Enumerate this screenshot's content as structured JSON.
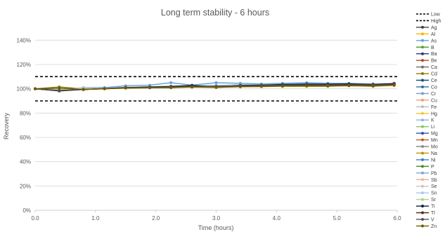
{
  "chart_data": {
    "type": "line",
    "title": "Long term stability - 6 hours",
    "xlabel": "Time (hours)",
    "ylabel": "Recovery",
    "xlim": [
      0,
      6
    ],
    "ylim": [
      0,
      150
    ],
    "x_ticks": [
      "0.0",
      "1.0",
      "2.0",
      "3.0",
      "4.0",
      "5.0",
      "6.0"
    ],
    "y_ticks": [
      "0%",
      "20%",
      "40%",
      "60%",
      "80%",
      "100%",
      "120%",
      "140%"
    ],
    "grid": "horizontal",
    "legend_position": "right",
    "x": [
      0,
      0.4,
      0.8,
      1.15,
      1.5,
      1.9,
      2.25,
      2.6,
      3.0,
      3.4,
      3.75,
      4.1,
      4.5,
      4.85,
      5.2,
      5.6,
      5.95
    ],
    "thresholds": [
      {
        "name": "Low",
        "value": 90,
        "color": "#000000"
      },
      {
        "name": "High",
        "value": 110,
        "color": "#000000"
      }
    ],
    "series": [
      {
        "name": "Ag",
        "color": "#404040",
        "values": [
          100,
          98.5,
          99.5,
          100,
          100.8,
          101,
          101.5,
          101.8,
          101.5,
          102,
          102.3,
          102.5,
          102.8,
          103,
          103,
          103,
          103.5
        ]
      },
      {
        "name": "Al",
        "color": "#f5b800",
        "values": [
          100,
          99,
          99.6,
          100.2,
          100.8,
          101.2,
          101.5,
          102,
          102,
          102.3,
          102.5,
          102.8,
          103,
          103,
          103.2,
          103,
          103.5
        ]
      },
      {
        "name": "As",
        "color": "#6a9fd8",
        "values": [
          100,
          99,
          101,
          101,
          102.5,
          103,
          105,
          103,
          105,
          104.5,
          104,
          104.5,
          105,
          104.5,
          104.5,
          104,
          104
        ]
      },
      {
        "name": "B",
        "color": "#5aa02c",
        "values": [
          100,
          98.8,
          99.5,
          100.2,
          100.8,
          101,
          101.2,
          101.8,
          101.8,
          102,
          102.2,
          102.5,
          102.8,
          102.8,
          103,
          102.8,
          103.2
        ]
      },
      {
        "name": "Ba",
        "color": "#1f3e7a",
        "values": [
          100,
          98.5,
          99.6,
          100.3,
          101,
          101.5,
          101.8,
          102.5,
          102.5,
          103,
          103.2,
          103.5,
          103.8,
          103.8,
          104,
          103.8,
          104.2
        ]
      },
      {
        "name": "Be",
        "color": "#b5481a",
        "values": [
          100,
          98.6,
          99.5,
          100.2,
          100.8,
          101.2,
          101.5,
          102,
          102,
          102.5,
          102.6,
          103,
          103.2,
          103.3,
          103.5,
          103.2,
          104
        ]
      },
      {
        "name": "Ca",
        "color": "#6e6e6e",
        "values": [
          100,
          98.7,
          99.6,
          100.3,
          100.9,
          101.2,
          101.6,
          102,
          102.2,
          102.5,
          102.7,
          103,
          103.2,
          103.2,
          103.5,
          103.3,
          103.8
        ]
      },
      {
        "name": "Cd",
        "color": "#8c7a00",
        "values": [
          100,
          101.5,
          100,
          100.5,
          101,
          101,
          100.8,
          101.5,
          101,
          101.8,
          101.8,
          102,
          102,
          102,
          102.5,
          102,
          103
        ]
      },
      {
        "name": "Ce",
        "color": "#17527a",
        "values": [
          100,
          98.5,
          99.7,
          100.4,
          101,
          101.4,
          101.8,
          102.3,
          102.4,
          102.8,
          103,
          103.4,
          103.6,
          103.6,
          103.8,
          103.6,
          104
        ]
      },
      {
        "name": "Co",
        "color": "#2f6ea8",
        "values": [
          100,
          98.6,
          99.6,
          100.3,
          100.9,
          101.3,
          101.7,
          102.2,
          102.3,
          102.7,
          102.9,
          103.3,
          103.5,
          103.5,
          103.7,
          103.5,
          103.9
        ]
      },
      {
        "name": "Cr",
        "color": "#7a9cc8",
        "values": [
          100,
          98.8,
          99.8,
          100.5,
          101.2,
          101.6,
          102,
          102.5,
          102.6,
          103,
          103.2,
          103.5,
          103.8,
          103.8,
          104,
          103.8,
          104.2
        ]
      },
      {
        "name": "Cu",
        "color": "#f0a070",
        "values": [
          100,
          98.9,
          99.7,
          100.3,
          100.9,
          101.2,
          101.5,
          101.9,
          102,
          102.3,
          102.5,
          102.8,
          103,
          103,
          103.2,
          103,
          103.5
        ]
      },
      {
        "name": "Fe",
        "color": "#bdbdbd",
        "values": [
          100,
          99,
          99.8,
          100.4,
          101,
          101.3,
          101.6,
          102,
          102.1,
          102.4,
          102.6,
          102.9,
          103.1,
          103.1,
          103.3,
          103.1,
          103.6
        ]
      },
      {
        "name": "Hg",
        "color": "#f2c744",
        "values": [
          100,
          99,
          99.5,
          100,
          100.5,
          100.8,
          101,
          101.3,
          101.2,
          101.6,
          101.8,
          102,
          102.2,
          102.2,
          102.4,
          102.2,
          102.6
        ]
      },
      {
        "name": "K",
        "color": "#8cb4e0",
        "values": [
          100,
          98.8,
          99.7,
          100.4,
          101.1,
          101.5,
          101.9,
          102.4,
          102.5,
          102.9,
          103.1,
          103.4,
          103.7,
          103.7,
          103.9,
          103.7,
          104.1
        ]
      },
      {
        "name": "Li",
        "color": "#8bc36a",
        "values": [
          100,
          98.9,
          99.6,
          100.2,
          100.8,
          101.1,
          101.4,
          101.8,
          101.9,
          102.2,
          102.4,
          102.7,
          102.9,
          102.9,
          103.1,
          102.9,
          103.4
        ]
      },
      {
        "name": "Mg",
        "color": "#2e4fa0",
        "values": [
          100,
          98.4,
          99.6,
          100.4,
          101.1,
          101.6,
          102,
          102.6,
          102.6,
          103.1,
          103.3,
          103.6,
          103.9,
          103.9,
          104.1,
          103.9,
          104.4
        ]
      },
      {
        "name": "Mn",
        "color": "#c8581e",
        "values": [
          100,
          98.6,
          99.5,
          100.2,
          100.9,
          101.3,
          101.6,
          102.1,
          102.1,
          102.5,
          102.7,
          103,
          103.2,
          103.3,
          103.5,
          103.2,
          104.6
        ]
      },
      {
        "name": "Mo",
        "color": "#8a8a8a",
        "values": [
          100,
          98.7,
          99.6,
          100.3,
          100.9,
          101.3,
          101.6,
          102.1,
          102.2,
          102.6,
          102.8,
          103.1,
          103.3,
          103.3,
          103.5,
          103.3,
          103.8
        ]
      },
      {
        "name": "Na",
        "color": "#c09000",
        "values": [
          100,
          99,
          99.6,
          100.1,
          100.6,
          100.9,
          101.1,
          101.5,
          101.4,
          101.8,
          102,
          102.2,
          102.4,
          102.4,
          102.6,
          102.4,
          102.9
        ]
      },
      {
        "name": "Ni",
        "color": "#3a7fc4",
        "values": [
          100,
          98.6,
          99.7,
          100.4,
          101,
          101.4,
          101.8,
          102.3,
          102.4,
          102.8,
          103,
          103.3,
          103.6,
          103.6,
          103.8,
          103.6,
          104
        ]
      },
      {
        "name": "P",
        "color": "#4a8a2a",
        "values": [
          100,
          98.8,
          99.6,
          100.2,
          100.8,
          101.1,
          101.4,
          101.9,
          101.9,
          102.3,
          102.5,
          102.8,
          103,
          103,
          103.2,
          103,
          103.4
        ]
      },
      {
        "name": "Pb",
        "color": "#7ea6d8",
        "values": [
          100,
          98.9,
          99.9,
          100.6,
          101.3,
          101.7,
          102.1,
          102.6,
          102.8,
          103.2,
          103.4,
          103.7,
          104,
          104,
          104.2,
          104,
          104.4
        ]
      },
      {
        "name": "Sb",
        "color": "#f0b48c",
        "values": [
          100,
          99,
          99.7,
          100.3,
          100.9,
          101.2,
          101.5,
          102,
          102,
          102.4,
          102.6,
          102.9,
          103.1,
          103.1,
          103.3,
          103.1,
          103.5
        ]
      },
      {
        "name": "Se",
        "color": "#c8c8c8",
        "values": [
          100,
          99.2,
          100.8,
          100.4,
          101,
          101.3,
          101.6,
          102,
          102.1,
          102.4,
          102.6,
          102.9,
          103.1,
          103.1,
          103.3,
          103.1,
          103.6
        ]
      },
      {
        "name": "Sn",
        "color": "#a8c8ec",
        "values": [
          100,
          99,
          99.8,
          100.5,
          101.2,
          101.6,
          102,
          102.5,
          102.6,
          103,
          103.2,
          103.5,
          103.8,
          103.8,
          104,
          103.8,
          104.2
        ]
      },
      {
        "name": "Sr",
        "color": "#a8d488",
        "values": [
          100,
          99,
          99.7,
          100.3,
          100.9,
          101.2,
          101.5,
          102,
          102,
          102.4,
          102.6,
          102.9,
          103.1,
          103.1,
          103.3,
          103.1,
          103.5
        ]
      },
      {
        "name": "Ti",
        "color": "#0f1e3c",
        "values": [
          100,
          98.2,
          99.4,
          100.2,
          101,
          101.5,
          101.9,
          102.8,
          101.5,
          102.8,
          103,
          103.5,
          103.8,
          103.8,
          104,
          103.6,
          104.2
        ]
      },
      {
        "name": "Tl",
        "color": "#5a2a10",
        "values": [
          100,
          98.5,
          99.4,
          100.1,
          100.8,
          101.2,
          101.5,
          102,
          102,
          102.4,
          102.6,
          103,
          103.2,
          103.2,
          103.4,
          103.2,
          103.7
        ]
      },
      {
        "name": "V",
        "color": "#505050",
        "values": [
          100,
          98.6,
          99.5,
          100.2,
          100.8,
          101.2,
          101.5,
          102,
          102,
          102.4,
          102.6,
          102.9,
          103.1,
          103.1,
          103.3,
          103.1,
          103.6
        ]
      },
      {
        "name": "Zn",
        "color": "#6e5a00",
        "values": [
          100,
          100.5,
          99.5,
          100,
          100.6,
          100.8,
          101,
          101.5,
          101.2,
          101.7,
          101.9,
          102.2,
          102.4,
          102.4,
          102.6,
          102.3,
          103
        ]
      }
    ]
  }
}
